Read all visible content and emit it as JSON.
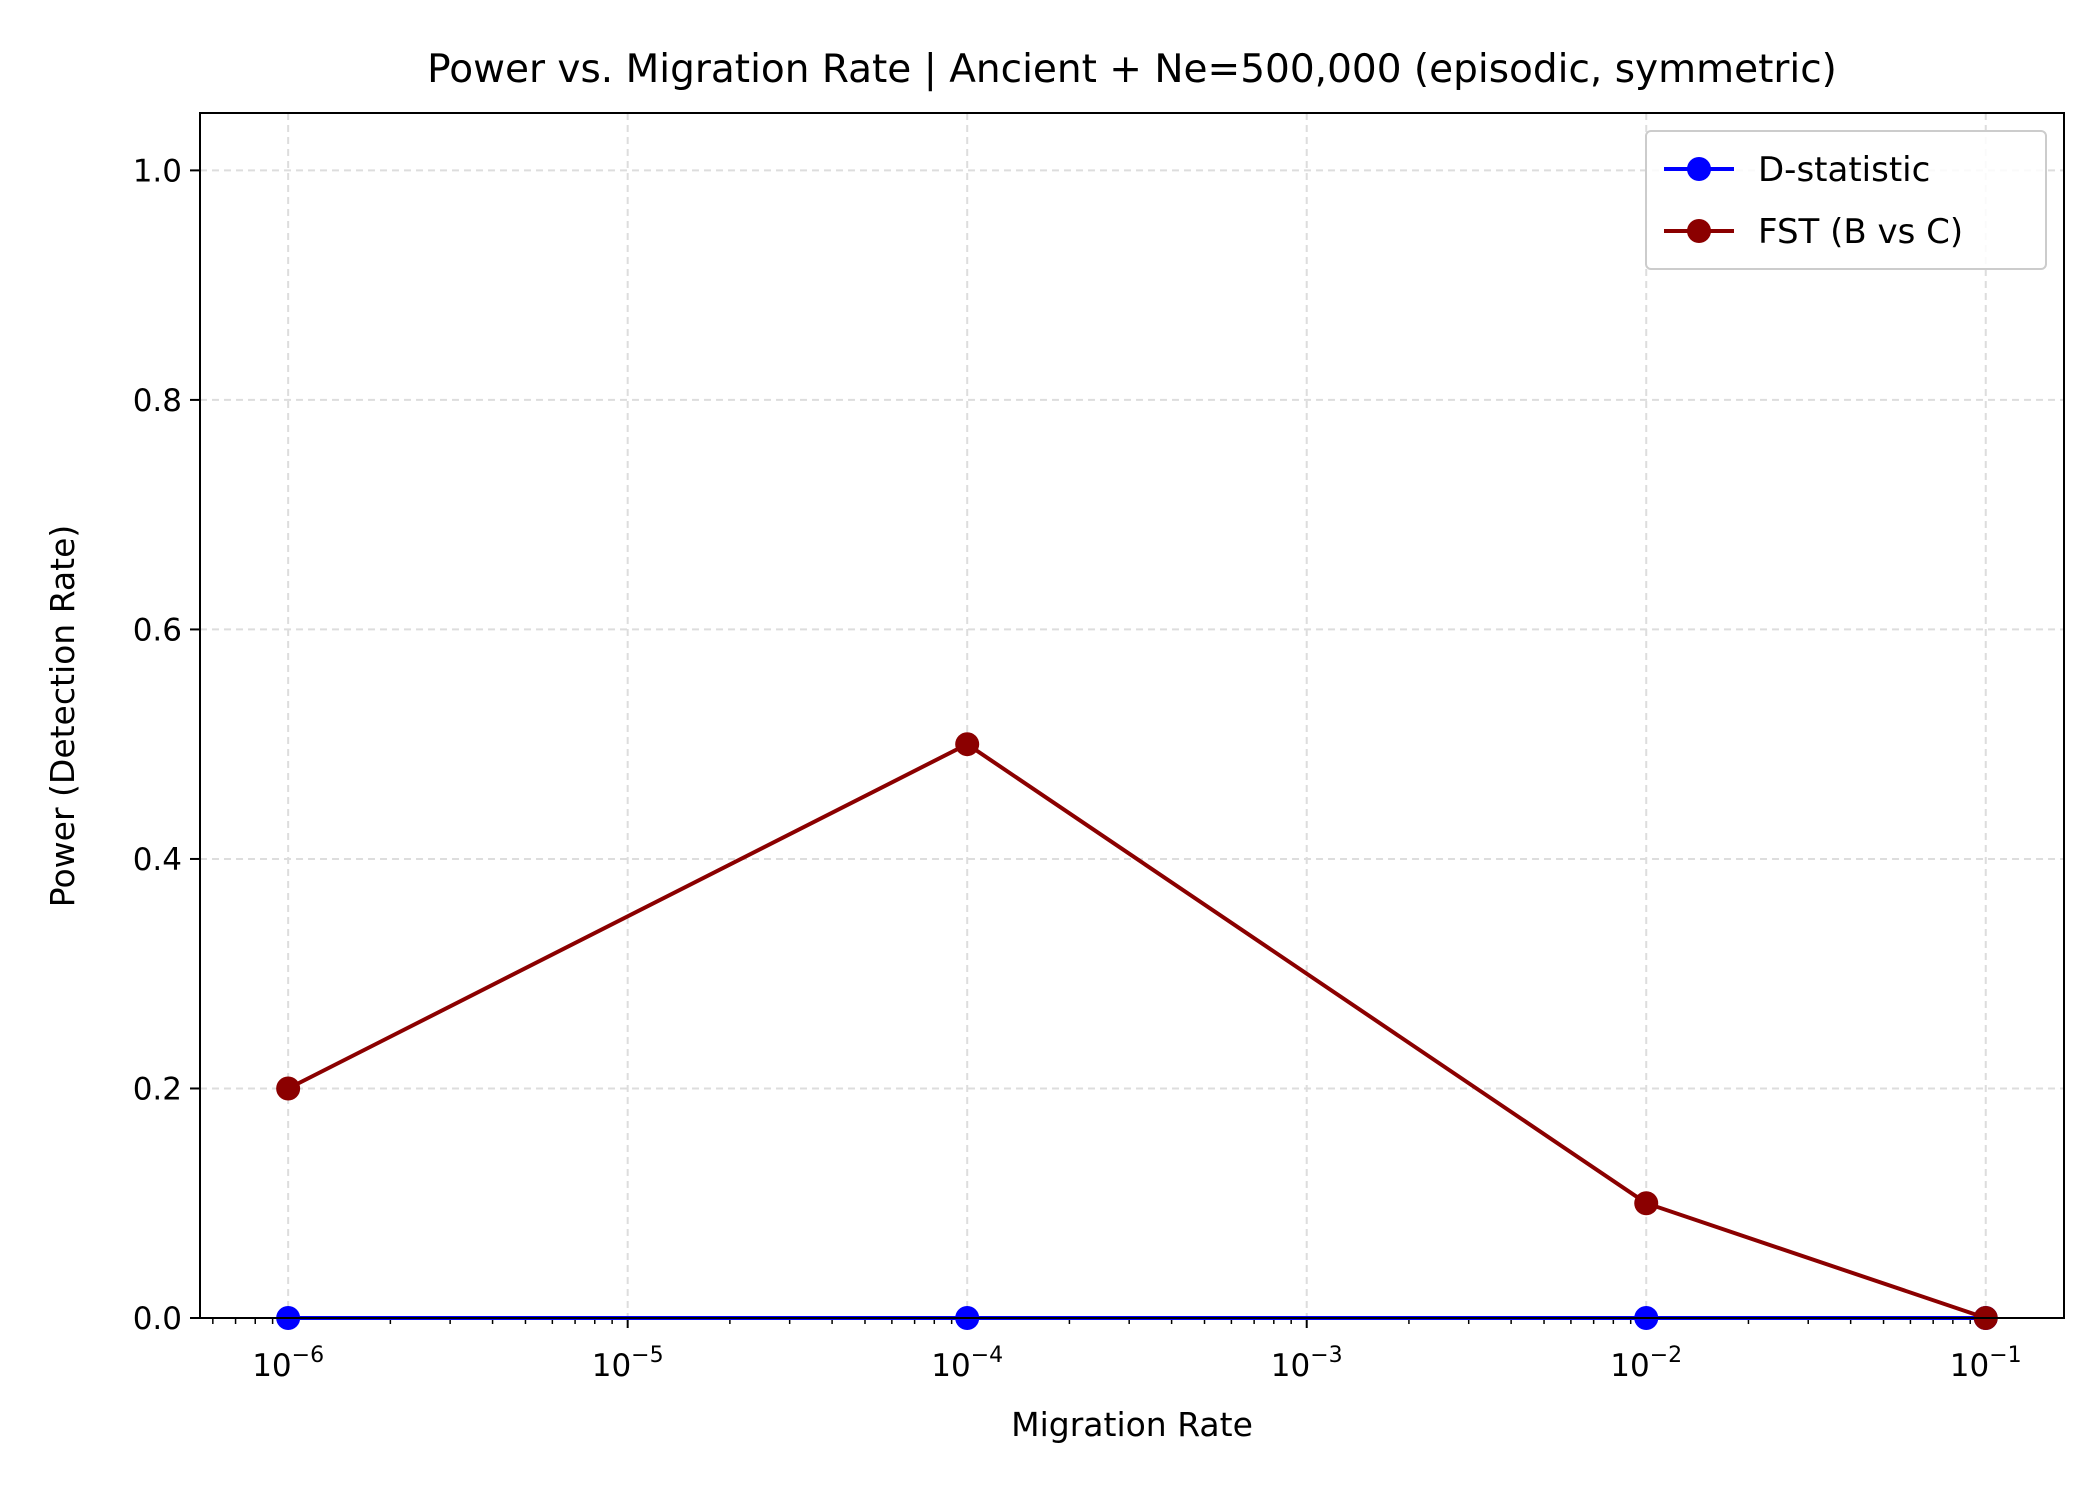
{
  "chart_data": {
    "type": "line",
    "title": "Power vs. Migration Rate | Ancient + Ne=500,000 (episodic, symmetric)",
    "xlabel": "Migration Rate",
    "ylabel": "Power (Detection Rate)",
    "x_scale": "log",
    "xlim": [
      5.5e-07,
      0.17
    ],
    "ylim": [
      0,
      1.05
    ],
    "x_ticks": [
      {
        "value": 1e-06,
        "base": "10",
        "exp": "−6"
      },
      {
        "value": 1e-05,
        "base": "10",
        "exp": "−5"
      },
      {
        "value": 0.0001,
        "base": "10",
        "exp": "−4"
      },
      {
        "value": 0.001,
        "base": "10",
        "exp": "−3"
      },
      {
        "value": 0.01,
        "base": "10",
        "exp": "−2"
      },
      {
        "value": 0.1,
        "base": "10",
        "exp": "−1"
      }
    ],
    "y_ticks": [
      {
        "value": 0.0,
        "label": "0.0"
      },
      {
        "value": 0.2,
        "label": "0.2"
      },
      {
        "value": 0.4,
        "label": "0.4"
      },
      {
        "value": 0.6,
        "label": "0.6"
      },
      {
        "value": 0.8,
        "label": "0.8"
      },
      {
        "value": 1.0,
        "label": "1.0"
      }
    ],
    "grid": true,
    "legend_position": "top-right",
    "series": [
      {
        "name": "D-statistic",
        "color": "#0000ff",
        "marker": "circle",
        "x": [
          1e-06,
          0.0001,
          0.01,
          0.1
        ],
        "y": [
          0.0,
          0.0,
          0.0,
          0.0
        ]
      },
      {
        "name": "FST (B vs C)",
        "color": "#8b0000",
        "marker": "circle",
        "x": [
          1e-06,
          0.0001,
          0.01,
          0.1
        ],
        "y": [
          0.2,
          0.5,
          0.1,
          0.0
        ]
      }
    ]
  }
}
